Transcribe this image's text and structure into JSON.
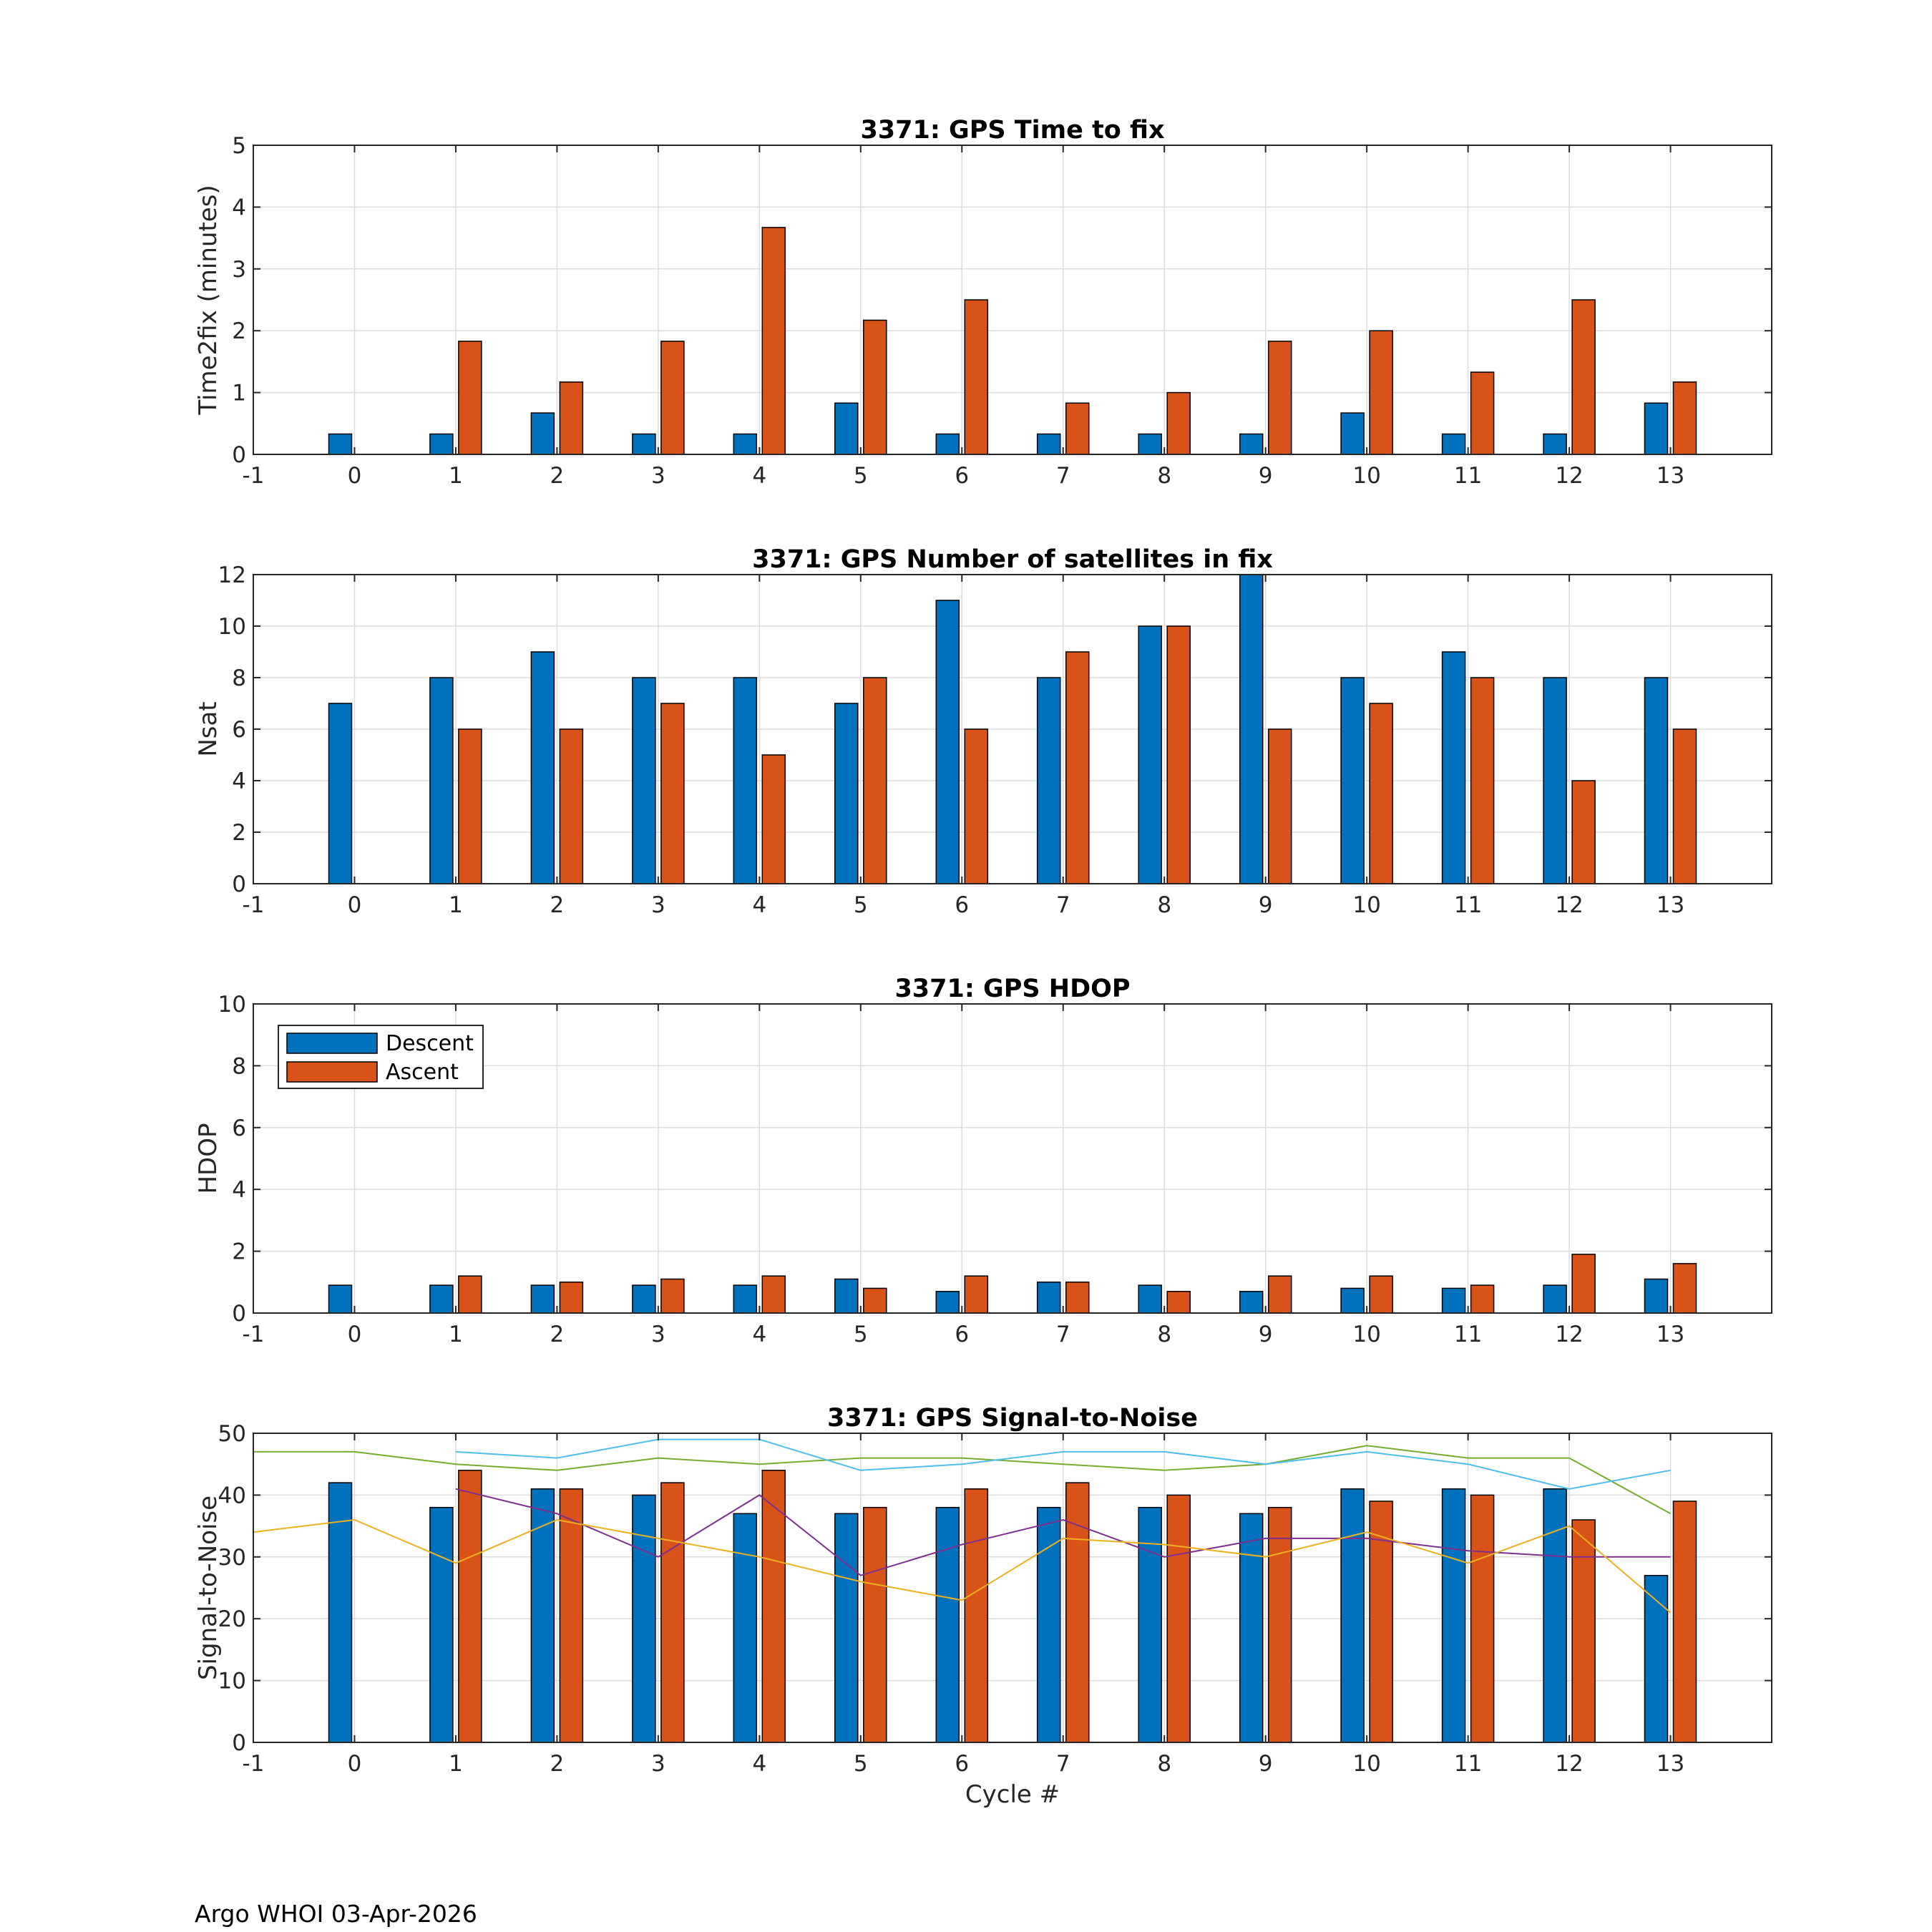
{
  "footer": "Argo WHOI 03-Apr-2026",
  "chart_data": [
    {
      "type": "bar",
      "title": "3371: GPS Time to fix",
      "xlabel": "",
      "ylabel": "Time2fix (minutes)",
      "x": [
        0,
        1,
        2,
        3,
        4,
        5,
        6,
        7,
        8,
        9,
        10,
        11,
        12,
        13
      ],
      "xlim": [
        -1,
        14
      ],
      "xticks": [
        "-1",
        "0",
        "1",
        "2",
        "3",
        "4",
        "5",
        "6",
        "7",
        "8",
        "9",
        "10",
        "11",
        "12",
        "13"
      ],
      "ylim": [
        0,
        5
      ],
      "yticks": [
        "0",
        "1",
        "2",
        "3",
        "4",
        "5"
      ],
      "grid": true,
      "series": [
        {
          "name": "Descent",
          "color": "#0072BD",
          "values": [
            0.33,
            0.33,
            0.67,
            0.33,
            0.33,
            0.83,
            0.33,
            0.33,
            0.33,
            0.33,
            0.67,
            0.33,
            0.33,
            0.83
          ]
        },
        {
          "name": "Ascent",
          "color": "#D95319",
          "values": [
            null,
            1.83,
            1.17,
            1.83,
            3.67,
            2.17,
            2.5,
            0.83,
            1.0,
            1.83,
            2.0,
            1.33,
            2.5,
            1.17
          ]
        }
      ]
    },
    {
      "type": "bar",
      "title": "3371: GPS Number of satellites in fix",
      "xlabel": "",
      "ylabel": "Nsat",
      "x": [
        0,
        1,
        2,
        3,
        4,
        5,
        6,
        7,
        8,
        9,
        10,
        11,
        12,
        13
      ],
      "xlim": [
        -1,
        14
      ],
      "xticks": [
        "-1",
        "0",
        "1",
        "2",
        "3",
        "4",
        "5",
        "6",
        "7",
        "8",
        "9",
        "10",
        "11",
        "12",
        "13"
      ],
      "ylim": [
        0,
        12
      ],
      "yticks": [
        "0",
        "2",
        "4",
        "6",
        "8",
        "10",
        "12"
      ],
      "grid": true,
      "series": [
        {
          "name": "Descent",
          "color": "#0072BD",
          "values": [
            7,
            8,
            9,
            8,
            8,
            7,
            11,
            8,
            10,
            12,
            8,
            9,
            8,
            8
          ]
        },
        {
          "name": "Ascent",
          "color": "#D95319",
          "values": [
            null,
            6,
            6,
            7,
            5,
            8,
            6,
            9,
            10,
            6,
            7,
            8,
            4,
            6
          ]
        }
      ]
    },
    {
      "type": "bar",
      "title": "3371: GPS HDOP",
      "xlabel": "",
      "ylabel": "HDOP",
      "x": [
        0,
        1,
        2,
        3,
        4,
        5,
        6,
        7,
        8,
        9,
        10,
        11,
        12,
        13
      ],
      "xlim": [
        -1,
        14
      ],
      "xticks": [
        "-1",
        "0",
        "1",
        "2",
        "3",
        "4",
        "5",
        "6",
        "7",
        "8",
        "9",
        "10",
        "11",
        "12",
        "13"
      ],
      "ylim": [
        0,
        10
      ],
      "yticks": [
        "0",
        "2",
        "4",
        "6",
        "8",
        "10"
      ],
      "grid": true,
      "legend": {
        "position": "top-left",
        "entries": [
          "Descent",
          "Ascent"
        ]
      },
      "series": [
        {
          "name": "Descent",
          "color": "#0072BD",
          "values": [
            0.9,
            0.9,
            0.9,
            0.9,
            0.9,
            1.1,
            0.7,
            1.0,
            0.9,
            0.7,
            0.8,
            0.8,
            0.9,
            1.1
          ]
        },
        {
          "name": "Ascent",
          "color": "#D95319",
          "values": [
            null,
            1.2,
            1.0,
            1.1,
            1.2,
            0.8,
            1.2,
            1.0,
            0.7,
            1.2,
            1.2,
            0.9,
            1.9,
            1.6
          ]
        }
      ]
    },
    {
      "type": "bar",
      "title": "3371: GPS Signal-to-Noise",
      "xlabel": "Cycle #",
      "ylabel": "Signal-to-Noise",
      "x": [
        0,
        1,
        2,
        3,
        4,
        5,
        6,
        7,
        8,
        9,
        10,
        11,
        12,
        13
      ],
      "xlim": [
        -1,
        14
      ],
      "xticks": [
        "-1",
        "0",
        "1",
        "2",
        "3",
        "4",
        "5",
        "6",
        "7",
        "8",
        "9",
        "10",
        "11",
        "12",
        "13"
      ],
      "ylim": [
        0,
        50
      ],
      "yticks": [
        "0",
        "10",
        "20",
        "30",
        "40",
        "50"
      ],
      "grid": true,
      "series": [
        {
          "name": "Descent",
          "color": "#0072BD",
          "values": [
            42,
            38,
            41,
            40,
            37,
            37,
            38,
            38,
            38,
            37,
            41,
            41,
            41,
            27
          ]
        },
        {
          "name": "Ascent",
          "color": "#D95319",
          "values": [
            null,
            44,
            41,
            42,
            44,
            38,
            41,
            42,
            40,
            38,
            39,
            40,
            36,
            39
          ]
        }
      ],
      "lines": [
        {
          "color": "#77AC30",
          "x": [
            -1,
            0,
            1,
            2,
            3,
            4,
            5,
            6,
            7,
            8,
            9,
            10,
            11,
            12,
            13
          ],
          "y": [
            47,
            47,
            45,
            44,
            46,
            45,
            46,
            46,
            45,
            44,
            45,
            48,
            46,
            46,
            37
          ]
        },
        {
          "color": "#4DBEEE",
          "x": [
            1,
            2,
            3,
            4,
            5,
            6,
            7,
            8,
            9,
            10,
            11,
            12,
            13
          ],
          "y": [
            47,
            46,
            49,
            49,
            44,
            45,
            47,
            47,
            45,
            47,
            45,
            41,
            44
          ]
        },
        {
          "color": "#7E2F8E",
          "x": [
            1,
            2,
            3,
            4,
            5,
            6,
            7,
            8,
            9,
            10,
            11,
            12,
            13
          ],
          "y": [
            41,
            37,
            30,
            40,
            27,
            32,
            36,
            30,
            33,
            33,
            31,
            30,
            30
          ]
        },
        {
          "color": "#EDB120",
          "x": [
            -1,
            0,
            1,
            2,
            3,
            4,
            5,
            6,
            7,
            8,
            9,
            10,
            11,
            12,
            13
          ],
          "y": [
            34,
            36,
            29,
            36,
            33,
            30,
            26,
            23,
            33,
            32,
            30,
            34,
            29,
            35,
            21
          ]
        }
      ]
    }
  ]
}
